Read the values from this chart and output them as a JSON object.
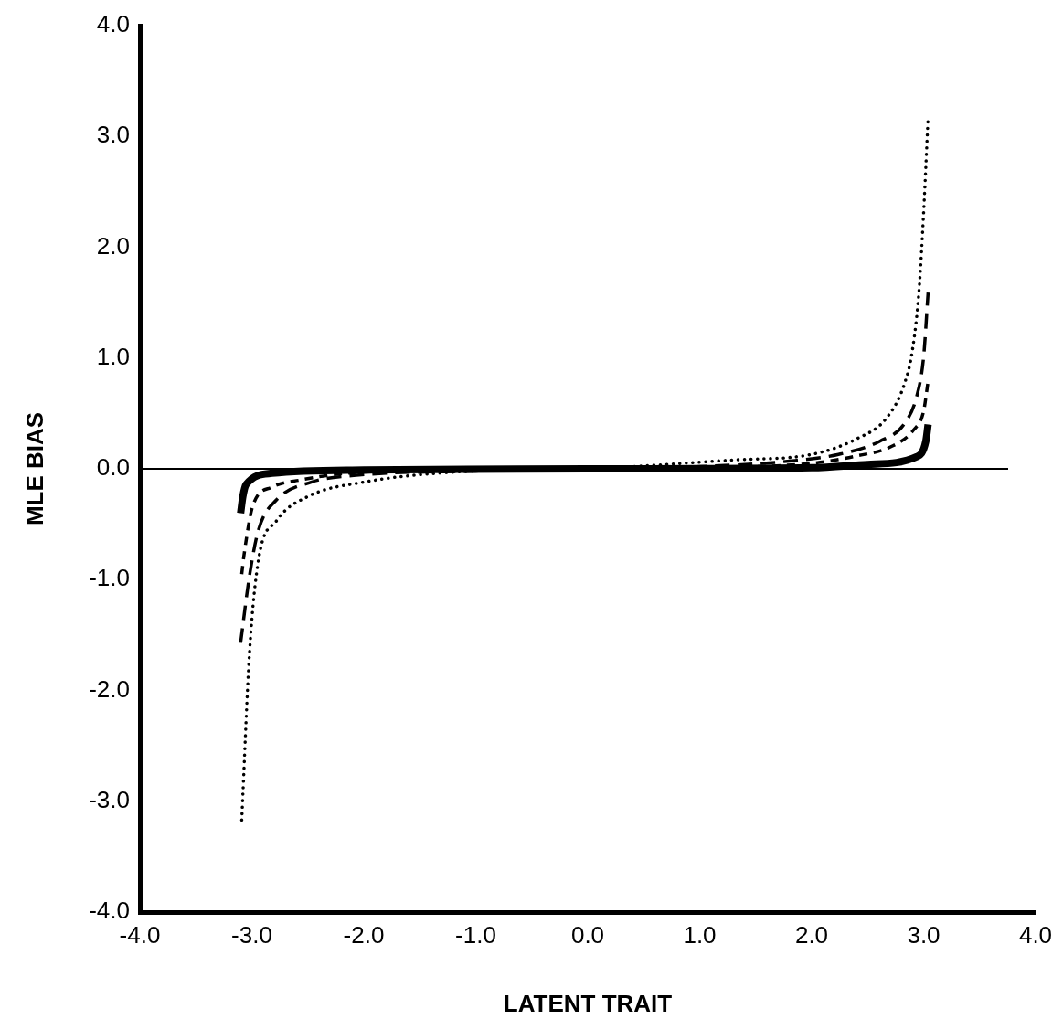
{
  "chart_data": {
    "type": "line",
    "xlabel": "LATENT TRAIT",
    "ylabel": "MLE BIAS",
    "xlim": [
      -4,
      4
    ],
    "ylim": [
      -4,
      4
    ],
    "xticks": [
      {
        "value": -4,
        "label": "-4.0"
      },
      {
        "value": -3,
        "label": "-3.0"
      },
      {
        "value": -2,
        "label": "-2.0"
      },
      {
        "value": -1,
        "label": "-1.0"
      },
      {
        "value": 0,
        "label": "0.0"
      },
      {
        "value": 1,
        "label": "1.0"
      },
      {
        "value": 2,
        "label": "2.0"
      },
      {
        "value": 3,
        "label": "3.0"
      },
      {
        "value": 4,
        "label": "4.0"
      }
    ],
    "yticks": [
      {
        "value": -4,
        "label": "-4.0"
      },
      {
        "value": -3,
        "label": "-3.0"
      },
      {
        "value": -2,
        "label": "-2.0"
      },
      {
        "value": -1,
        "label": "-1.0"
      },
      {
        "value": 0,
        "label": "0.0"
      },
      {
        "value": 1,
        "label": "1.0"
      },
      {
        "value": 2,
        "label": "2.0"
      },
      {
        "value": 3,
        "label": "3.0"
      },
      {
        "value": 4,
        "label": "4.0"
      }
    ],
    "grid": false,
    "legend": false,
    "marker": "none",
    "ref_lines": [
      {
        "axis": "y",
        "value": 0,
        "color": "#000000"
      }
    ],
    "series": [
      {
        "color": "#000000",
        "line_style": "dotted",
        "x": [
          -3.09,
          -3.02,
          -2.94,
          -2.78,
          -2.5,
          -2.0,
          -1.2,
          0,
          1.3,
          2.0,
          2.4,
          2.67,
          2.83,
          2.9,
          2.96,
          3.0,
          3.04
        ],
        "values": [
          -3.17,
          -1.65,
          -0.82,
          -0.47,
          -0.25,
          -0.12,
          -0.03,
          0,
          0.08,
          0.13,
          0.27,
          0.46,
          0.77,
          1.07,
          1.62,
          2.31,
          3.17
        ]
      },
      {
        "color": "#000000",
        "line_style": "dashed",
        "x": [
          -3.1,
          -3.02,
          -2.94,
          -2.78,
          -2.47,
          -2.09,
          -1.0,
          0,
          1.0,
          1.8,
          2.24,
          2.61,
          2.83,
          2.94,
          3.0,
          3.04
        ],
        "values": [
          -1.57,
          -0.96,
          -0.55,
          -0.28,
          -0.12,
          -0.06,
          -0.02,
          0,
          0.02,
          0.07,
          0.13,
          0.25,
          0.41,
          0.66,
          1.01,
          1.59
        ]
      },
      {
        "color": "#000000",
        "line_style": "dashed",
        "x": [
          -3.09,
          -3.07,
          -2.99,
          -2.82,
          -2.56,
          -2.15,
          -1.0,
          0,
          1.0,
          2.0,
          2.37,
          2.73,
          2.91,
          3.0,
          3.04
        ],
        "values": [
          -0.95,
          -0.78,
          -0.33,
          -0.165,
          -0.1,
          -0.04,
          -0.01,
          0,
          0.01,
          0.05,
          0.11,
          0.21,
          0.35,
          0.52,
          0.79
        ]
      },
      {
        "color": "#000000",
        "line_style": "solid",
        "x": [
          -3.1,
          -3.08,
          -3.05,
          -2.82,
          -2.0,
          0,
          2.0,
          2.5,
          2.94,
          3.02,
          3.04
        ],
        "values": [
          -0.4,
          -0.25,
          -0.14,
          -0.04,
          -0.01,
          0,
          0.01,
          0.04,
          0.11,
          0.25,
          0.4
        ]
      }
    ]
  }
}
